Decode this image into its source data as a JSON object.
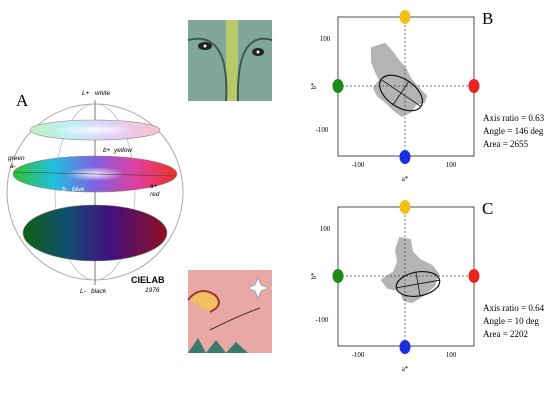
{
  "panel_a": {
    "label": "A",
    "l_plus": "L+",
    "white": "white",
    "b_plus": "b+",
    "yellow": "yellow",
    "green": "green",
    "a_minus": "a-",
    "b_minus": "b-",
    "blue": "blue",
    "a_plus": "a+",
    "red": "red",
    "l_minus": "L-",
    "black": "black",
    "brand": "CIELAB",
    "year": "1976"
  },
  "plots": [
    {
      "label": "B",
      "x_label": "a*",
      "y_label": "b*",
      "x_ticks": [
        "-100",
        "100"
      ],
      "y_ticks": [
        "100",
        "-100"
      ],
      "stats": [
        "Axis ratio = 0.63",
        "Angle = 146 deg",
        "Area = 2655"
      ]
    },
    {
      "label": "C",
      "x_label": "a*",
      "y_label": "b*",
      "x_ticks": [
        "-100",
        "100"
      ],
      "y_ticks": [
        "100",
        "-100"
      ],
      "stats": [
        "Axis ratio = 0.64",
        "Angle = 10 deg",
        "Area = 2202"
      ]
    }
  ]
}
